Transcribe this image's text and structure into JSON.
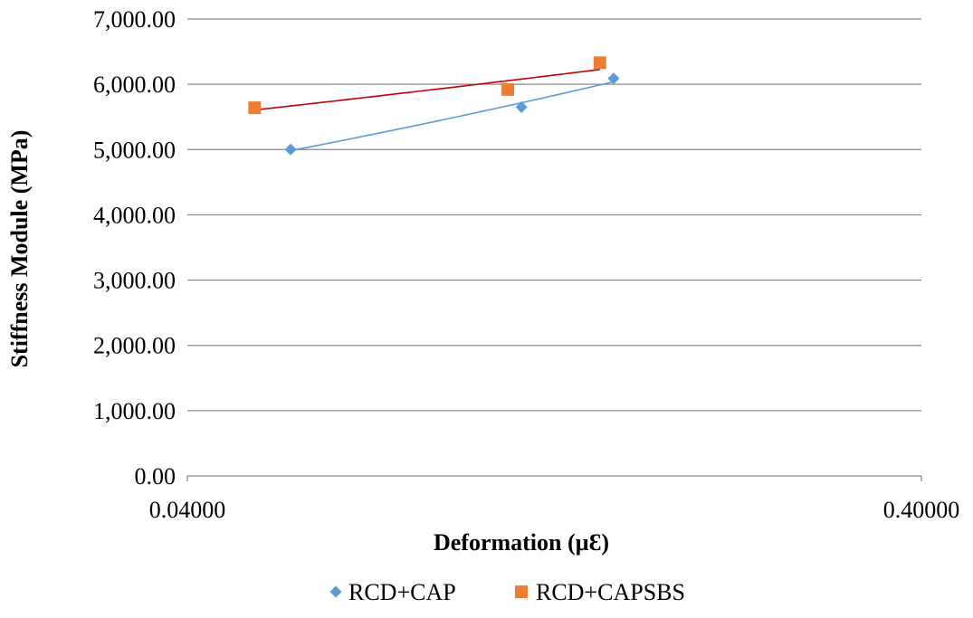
{
  "chart_data": {
    "type": "scatter",
    "title": "",
    "xlabel": "Deformation (µƐ)",
    "ylabel": "Stiffness Module (MPa)",
    "x_scale": "log",
    "xlim": [
      0.04,
      0.4
    ],
    "ylim": [
      0,
      7000
    ],
    "x_ticks": [
      0.04,
      0.4
    ],
    "x_tick_labels": [
      "0.04000",
      "0.40000"
    ],
    "y_ticks": [
      0,
      1000,
      2000,
      3000,
      4000,
      5000,
      6000,
      7000
    ],
    "y_tick_labels": [
      "0.00",
      "1,000.00",
      "2,000.00",
      "3,000.00",
      "4,000.00",
      "5,000.00",
      "6,000.00",
      "7,000.00"
    ],
    "grid": "horizontal",
    "legend_position": "bottom",
    "trendline": "power",
    "series": [
      {
        "name": "RCD+CAP",
        "color": "#5b9bd5",
        "trend_color": "#5b9bd5",
        "marker": "diamond",
        "x": [
          0.0553,
          0.1141,
          0.1523
        ],
        "y": [
          5000,
          5650,
          6090
        ]
      },
      {
        "name": "RCD+CAPSBS",
        "color": "#ed7d31",
        "trend_color": "#c00000",
        "marker": "square",
        "x": [
          0.0494,
          0.1093,
          0.1459
        ],
        "y": [
          5640,
          5920,
          6330
        ]
      }
    ]
  }
}
